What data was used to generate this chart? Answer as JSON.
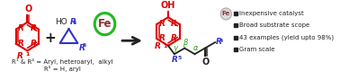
{
  "bg_color": "#ffffff",
  "red": "#dd0000",
  "blue": "#3333cc",
  "green_circle": "#22bb22",
  "fe_color": "#8b3030",
  "fe_bg": "#ddd8d8",
  "arrow_color": "#222222",
  "text_color": "#222222",
  "green_text": "#22aa00",
  "bullet_items": [
    "Inexpensive catalyst",
    "Broad substrate scope",
    "43 examples (yield upto 98%)",
    "Gram scale"
  ],
  "label_R1R4": "R¹ & R⁴ = Aryl, heteroaryl,  alkyl",
  "label_R5": "R⁵ = H, aryl",
  "figsize": [
    3.78,
    0.89
  ],
  "dpi": 100
}
